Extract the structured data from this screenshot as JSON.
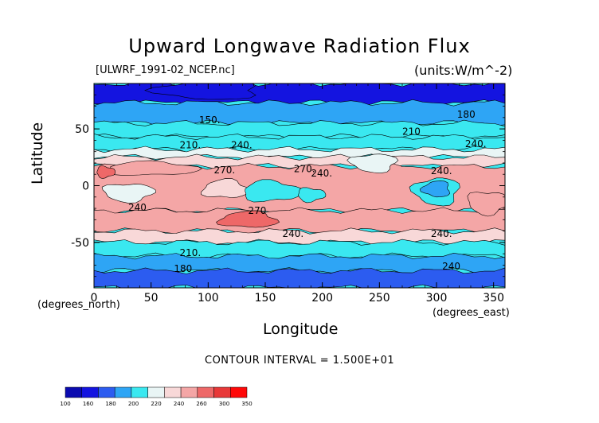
{
  "chart_data": {
    "type": "heatmap",
    "title": "Upward Longwave Radiation Flux",
    "dataset": "[ULWRF_1991-02_NCEP.nc]",
    "units": "(units:W/m^-2)",
    "xlabel": "Longitude",
    "ylabel": "Latitude",
    "x_units": "(degrees_east)",
    "y_units": "(degrees_north)",
    "xlim": [
      0,
      360
    ],
    "ylim": [
      -90,
      90
    ],
    "x_ticks": [
      0,
      50,
      100,
      150,
      200,
      250,
      300,
      350
    ],
    "y_ticks": [
      50,
      0,
      -50
    ],
    "contour_interval_text": "CONTOUR INTERVAL = 1.500E+01",
    "contour_labels": [
      {
        "text": "150.",
        "lon": 92,
        "lat": 55
      },
      {
        "text": "180",
        "lon": 318,
        "lat": 60
      },
      {
        "text": "210",
        "lon": 270,
        "lat": 45
      },
      {
        "text": "210.",
        "lon": 75,
        "lat": 33
      },
      {
        "text": "240.",
        "lon": 120,
        "lat": 33
      },
      {
        "text": "240.",
        "lon": 325,
        "lat": 34
      },
      {
        "text": "270.",
        "lon": 105,
        "lat": 11
      },
      {
        "text": "270.",
        "lon": 175,
        "lat": 12
      },
      {
        "text": "240.",
        "lon": 190,
        "lat": 8
      },
      {
        "text": "240.",
        "lon": 295,
        "lat": 10
      },
      {
        "text": "240",
        "lon": 30,
        "lat": -22
      },
      {
        "text": "270",
        "lon": 135,
        "lat": -25
      },
      {
        "text": "240.",
        "lon": 165,
        "lat": -45
      },
      {
        "text": "240.",
        "lon": 295,
        "lat": -45
      },
      {
        "text": "210.",
        "lon": 75,
        "lat": -62
      },
      {
        "text": "240",
        "lon": 305,
        "lat": -74
      },
      {
        "text": "180",
        "lon": 70,
        "lat": -76
      }
    ],
    "colorbar": {
      "levels": [
        "100",
        "160",
        "180",
        "200",
        "220",
        "240",
        "260",
        "300",
        "350"
      ],
      "colors": [
        "#0b0bb0",
        "#1414e0",
        "#2c5cf0",
        "#2ea5f5",
        "#3ae8f0",
        "#e9f5f5",
        "#f8d8d8",
        "#f4a6a6",
        "#ee6868",
        "#e83838",
        "#ff0808"
      ]
    },
    "bands": [
      {
        "lat_from": 90,
        "lat_to": 73,
        "value": 150
      },
      {
        "lat_from": 73,
        "lat_to": 55,
        "value": 180
      },
      {
        "lat_from": 55,
        "lat_to": 43,
        "value": 200
      },
      {
        "lat_from": 43,
        "lat_to": 32,
        "value": 215
      },
      {
        "lat_from": 32,
        "lat_to": 25,
        "value": 238
      },
      {
        "lat_from": 25,
        "lat_to": 17,
        "value": 258
      },
      {
        "lat_from": 17,
        "lat_to": -22,
        "value": 285
      },
      {
        "lat_from": -22,
        "lat_to": -40,
        "value": 268
      },
      {
        "lat_from": -40,
        "lat_to": -50,
        "value": 240
      },
      {
        "lat_from": -50,
        "lat_to": -62,
        "value": 215
      },
      {
        "lat_from": -62,
        "lat_to": -75,
        "value": 198
      },
      {
        "lat_from": -75,
        "lat_to": -90,
        "value": 160
      }
    ],
    "features": [
      {
        "lon": 115,
        "lat": -3,
        "rlon": 20,
        "rlat": 8,
        "value": 250
      },
      {
        "lon": 155,
        "lat": -5,
        "rlon": 25,
        "rlat": 9,
        "value": 215
      },
      {
        "lon": 190,
        "lat": -8,
        "rlon": 12,
        "rlat": 6,
        "value": 200
      },
      {
        "lon": 30,
        "lat": -6,
        "rlon": 22,
        "rlat": 8,
        "value": 225
      },
      {
        "lon": 300,
        "lat": -5,
        "rlon": 20,
        "rlat": 12,
        "value": 200
      },
      {
        "lon": 300,
        "lat": -3,
        "rlon": 12,
        "rlat": 7,
        "value": 180
      },
      {
        "lon": 135,
        "lat": -30,
        "rlon": 25,
        "rlat": 7,
        "value": 312
      },
      {
        "lon": 50,
        "lat": 15,
        "rlon": 40,
        "rlat": 6,
        "value": 290
      },
      {
        "lon": 10,
        "lat": 12,
        "rlon": 8,
        "rlat": 5,
        "value": 302
      },
      {
        "lon": 345,
        "lat": -15,
        "rlon": 18,
        "rlat": 10,
        "value": 295
      },
      {
        "lon": 245,
        "lat": 20,
        "rlon": 20,
        "rlat": 8,
        "value": 232
      },
      {
        "lon": 100,
        "lat": 84,
        "rlon": 45,
        "rlat": 8,
        "value": 120
      }
    ]
  }
}
